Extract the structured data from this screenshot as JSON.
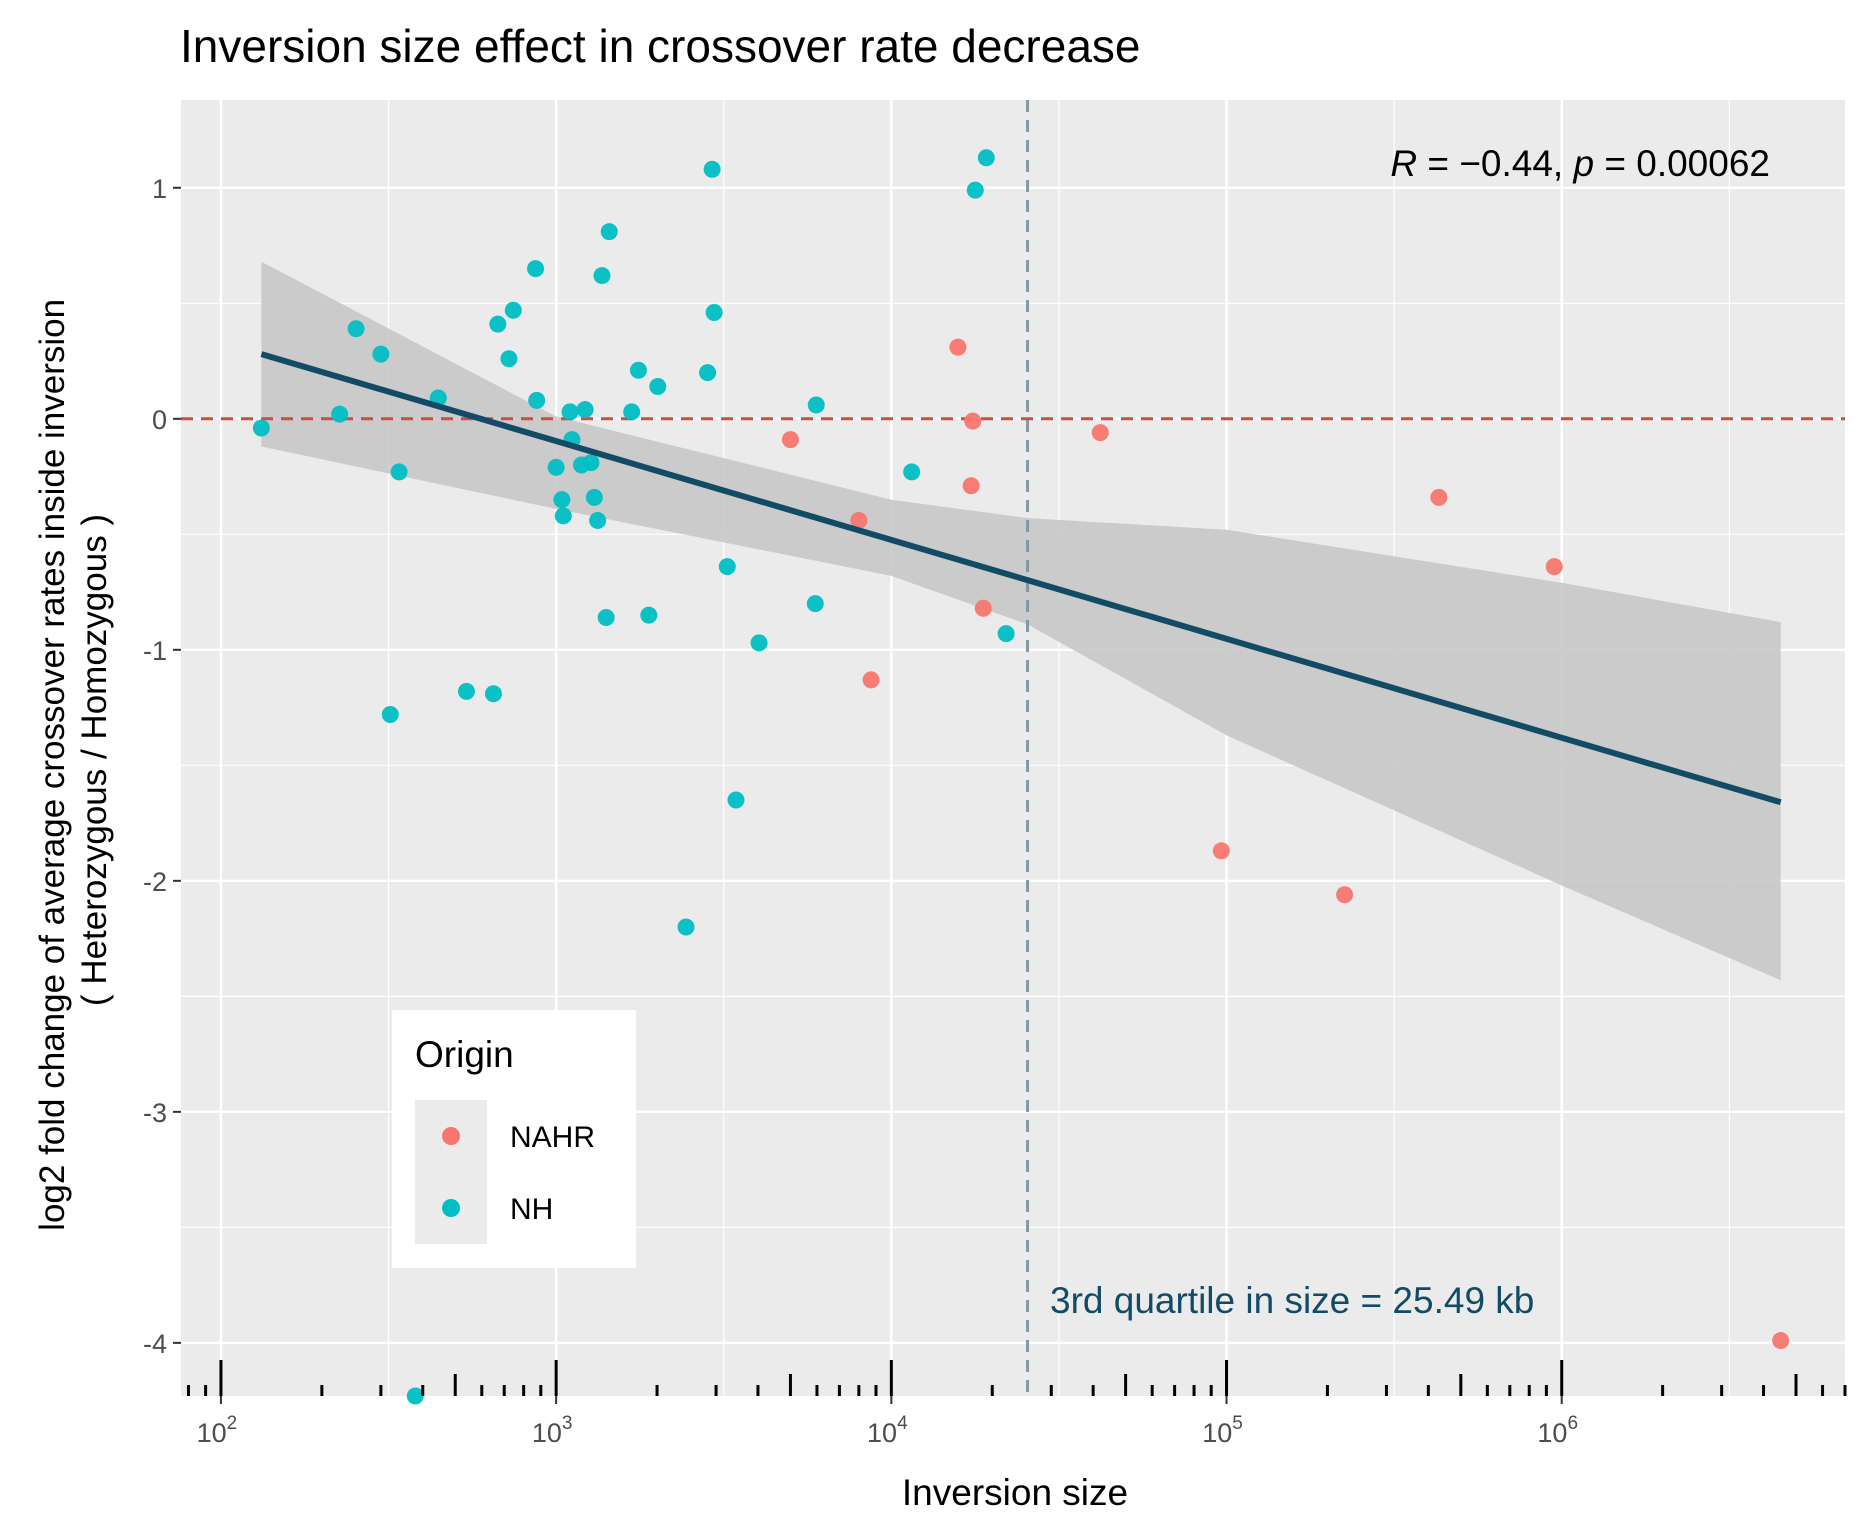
{
  "chart_data": {
    "type": "scatter",
    "title": "Inversion size effect in crossover rate decrease",
    "xlabel": "Inversion size",
    "ylabel": [
      "log2 fold change of average crossover rates inside inversion",
      "( Heterozygous / Homozygous )"
    ],
    "x_scale": "log10",
    "xlim": [
      76,
      7000000
    ],
    "ylim": [
      -4.23,
      1.38
    ],
    "x_ticks": [
      {
        "value": 100,
        "base": "10",
        "exp": "2"
      },
      {
        "value": 1000,
        "base": "10",
        "exp": "3"
      },
      {
        "value": 10000,
        "base": "10",
        "exp": "4"
      },
      {
        "value": 100000,
        "base": "10",
        "exp": "5"
      },
      {
        "value": 1000000,
        "base": "10",
        "exp": "6"
      }
    ],
    "y_ticks": [
      1,
      0,
      -1,
      -2,
      -3,
      -4
    ],
    "y_tick_labels": [
      "1",
      "0",
      "-1",
      "-2",
      "-3",
      "-4"
    ],
    "grid": true,
    "background": "#ebebeb",
    "series": [
      {
        "name": "NAHR",
        "color": "#f8766d",
        "points": [
          {
            "x": 5000,
            "y": -0.09
          },
          {
            "x": 8000,
            "y": -0.44
          },
          {
            "x": 8700,
            "y": -1.13
          },
          {
            "x": 15800,
            "y": 0.31
          },
          {
            "x": 17300,
            "y": -0.29
          },
          {
            "x": 17500,
            "y": -0.01
          },
          {
            "x": 18800,
            "y": -0.82
          },
          {
            "x": 42000,
            "y": -0.06
          },
          {
            "x": 96500,
            "y": -1.87
          },
          {
            "x": 225000,
            "y": -2.06
          },
          {
            "x": 430000,
            "y": -0.34
          },
          {
            "x": 950000,
            "y": -0.64
          },
          {
            "x": 4500000,
            "y": -3.99
          }
        ]
      },
      {
        "name": "NH",
        "color": "#00bfc4",
        "points": [
          {
            "x": 132,
            "y": -0.04
          },
          {
            "x": 226,
            "y": 0.02
          },
          {
            "x": 253,
            "y": 0.39
          },
          {
            "x": 300,
            "y": 0.28
          },
          {
            "x": 320,
            "y": -1.28
          },
          {
            "x": 340,
            "y": -0.23
          },
          {
            "x": 445,
            "y": 0.09
          },
          {
            "x": 540,
            "y": -1.18
          },
          {
            "x": 650,
            "y": -1.19
          },
          {
            "x": 670,
            "y": 0.41
          },
          {
            "x": 723,
            "y": 0.26
          },
          {
            "x": 745,
            "y": 0.47
          },
          {
            "x": 868,
            "y": 0.65
          },
          {
            "x": 875,
            "y": 0.08
          },
          {
            "x": 1000,
            "y": -0.21
          },
          {
            "x": 1040,
            "y": -0.35
          },
          {
            "x": 1050,
            "y": -0.42
          },
          {
            "x": 1100,
            "y": 0.03
          },
          {
            "x": 1115,
            "y": -0.09
          },
          {
            "x": 1190,
            "y": -0.2
          },
          {
            "x": 1220,
            "y": 0.04
          },
          {
            "x": 1270,
            "y": -0.19
          },
          {
            "x": 1300,
            "y": -0.34
          },
          {
            "x": 1330,
            "y": -0.44
          },
          {
            "x": 1370,
            "y": 0.62
          },
          {
            "x": 1410,
            "y": -0.86
          },
          {
            "x": 1440,
            "y": 0.81
          },
          {
            "x": 1680,
            "y": 0.03
          },
          {
            "x": 1760,
            "y": 0.21
          },
          {
            "x": 1890,
            "y": -0.85
          },
          {
            "x": 2010,
            "y": 0.14
          },
          {
            "x": 2440,
            "y": -2.2
          },
          {
            "x": 2830,
            "y": 0.2
          },
          {
            "x": 2920,
            "y": 1.08
          },
          {
            "x": 2960,
            "y": 0.46
          },
          {
            "x": 3240,
            "y": -0.64
          },
          {
            "x": 3440,
            "y": -1.65
          },
          {
            "x": 4030,
            "y": -0.97
          },
          {
            "x": 5930,
            "y": -0.8
          },
          {
            "x": 5970,
            "y": 0.06
          },
          {
            "x": 11500,
            "y": -0.23
          },
          {
            "x": 17800,
            "y": 0.99
          },
          {
            "x": 19200,
            "y": 1.13
          },
          {
            "x": 22000,
            "y": -0.93
          },
          {
            "x": 380,
            "y": -4.23
          }
        ]
      }
    ],
    "fit": {
      "color": "#114b66",
      "x": [
        132,
        4500000
      ],
      "y": [
        0.28,
        -1.66
      ],
      "ci_band": {
        "color": "#c8c8c8",
        "x": [
          132,
          1000,
          10000,
          25490,
          100000,
          1000000,
          4500000
        ],
        "upper": [
          0.68,
          0.01,
          -0.35,
          -0.43,
          -0.48,
          -0.71,
          -0.88
        ],
        "lower": [
          -0.12,
          -0.39,
          -0.68,
          -0.89,
          -1.37,
          -2.02,
          -2.43
        ]
      }
    },
    "hlines": [
      {
        "y": 0,
        "color": "#cd4d3f",
        "style": "dashed"
      }
    ],
    "vlines": [
      {
        "x": 25490,
        "color": "#7f9aa5",
        "style": "dashed"
      }
    ],
    "annotations": {
      "correlation": {
        "R_symbol": "R",
        "R_text": " = −0.44, ",
        "p_symbol": "p",
        "p_text": " = 0.00062",
        "position": "top-right"
      },
      "quartile": {
        "text": "3rd quartile in size = 25.49 kb",
        "color": "#114b66",
        "position": "bottom-right"
      }
    },
    "legend": {
      "title": "Origin",
      "position": "bottom-left",
      "entries": [
        "NAHR",
        "NH"
      ]
    }
  }
}
